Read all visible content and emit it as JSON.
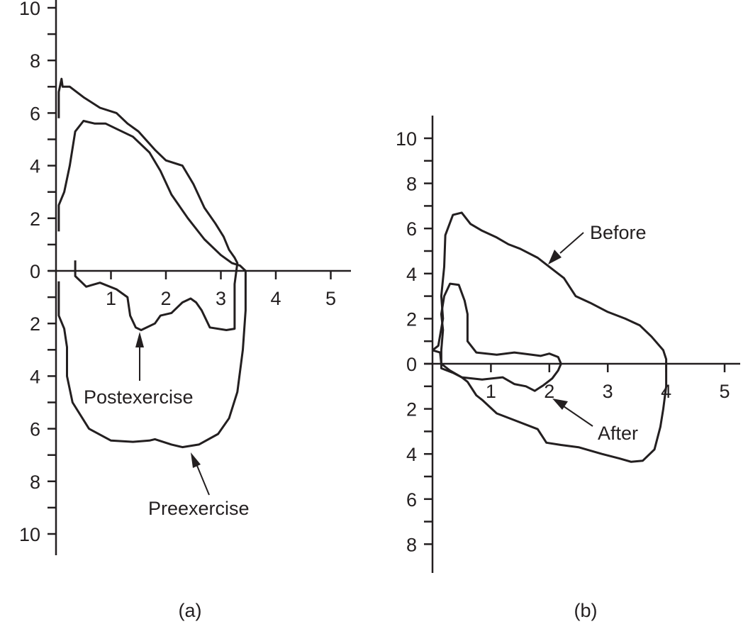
{
  "chart_data": [
    {
      "type": "line",
      "panel_label": "(a)",
      "title": "",
      "xlabel": "",
      "ylabel": "",
      "x_ticks": [
        "1",
        "2",
        "3",
        "4",
        "5"
      ],
      "y_ticks_up": [
        "0",
        "2",
        "4",
        "6",
        "8",
        "10"
      ],
      "y_ticks_down": [
        "2",
        "4",
        "6",
        "8",
        "10"
      ],
      "xlim": [
        0,
        5.3
      ],
      "ylim": [
        -10.8,
        10
      ],
      "grid": false,
      "series": [
        {
          "name": "Preexercise",
          "points": [
            [
              0.05,
              1.5
            ],
            [
              0.05,
              2.5
            ],
            [
              0.15,
              3.0
            ],
            [
              0.25,
              4.0
            ],
            [
              0.35,
              5.3
            ],
            [
              0.5,
              5.7
            ],
            [
              0.7,
              5.6
            ],
            [
              0.9,
              5.6
            ],
            [
              1.1,
              5.4
            ],
            [
              1.4,
              5.1
            ],
            [
              1.7,
              4.5
            ],
            [
              1.9,
              3.8
            ],
            [
              2.1,
              2.9
            ],
            [
              2.4,
              2.0
            ],
            [
              2.7,
              1.2
            ],
            [
              3.0,
              0.6
            ],
            [
              3.2,
              0.3
            ],
            [
              3.35,
              0.2
            ],
            [
              3.45,
              0.0
            ],
            [
              3.45,
              -1.5
            ],
            [
              3.4,
              -3.0
            ],
            [
              3.3,
              -4.6
            ],
            [
              3.15,
              -5.6
            ],
            [
              2.95,
              -6.2
            ],
            [
              2.6,
              -6.6
            ],
            [
              2.3,
              -6.7
            ],
            [
              2.1,
              -6.6
            ],
            [
              1.8,
              -6.4
            ],
            [
              1.7,
              -6.45
            ],
            [
              1.4,
              -6.5
            ],
            [
              1.0,
              -6.45
            ],
            [
              0.6,
              -6.0
            ],
            [
              0.3,
              -5.0
            ],
            [
              0.2,
              -4.0
            ],
            [
              0.2,
              -2.9
            ],
            [
              0.15,
              -2.2
            ],
            [
              0.05,
              -1.7
            ],
            [
              0.05,
              -0.4
            ]
          ]
        },
        {
          "name": "Postexercise",
          "points": [
            [
              0.05,
              5.8
            ],
            [
              0.05,
              6.8
            ],
            [
              0.1,
              7.3
            ],
            [
              0.12,
              7.0
            ],
            [
              0.25,
              7.0
            ],
            [
              0.5,
              6.6
            ],
            [
              0.8,
              6.2
            ],
            [
              1.1,
              6.0
            ],
            [
              1.3,
              5.6
            ],
            [
              1.5,
              5.3
            ],
            [
              1.8,
              4.6
            ],
            [
              2.0,
              4.2
            ],
            [
              2.3,
              4.0
            ],
            [
              2.5,
              3.3
            ],
            [
              2.7,
              2.4
            ],
            [
              2.9,
              1.8
            ],
            [
              3.05,
              1.3
            ],
            [
              3.15,
              0.8
            ],
            [
              3.25,
              0.5
            ],
            [
              3.3,
              0.3
            ],
            [
              3.25,
              -0.5
            ],
            [
              3.25,
              -2.2
            ],
            [
              3.1,
              -2.25
            ],
            [
              2.8,
              -2.15
            ],
            [
              2.65,
              -1.5
            ],
            [
              2.55,
              -1.2
            ],
            [
              2.45,
              -1.05
            ],
            [
              2.3,
              -1.2
            ],
            [
              2.1,
              -1.6
            ],
            [
              1.9,
              -1.7
            ],
            [
              1.8,
              -2.0
            ],
            [
              1.55,
              -2.25
            ],
            [
              1.45,
              -2.15
            ],
            [
              1.35,
              -1.7
            ],
            [
              1.3,
              -1.0
            ],
            [
              1.1,
              -0.7
            ],
            [
              0.8,
              -0.45
            ],
            [
              0.55,
              -0.6
            ],
            [
              0.45,
              -0.4
            ],
            [
              0.35,
              -0.2
            ],
            [
              0.35,
              0.4
            ]
          ]
        }
      ],
      "annotations": [
        {
          "text": "Postexercise",
          "target": [
            1.55,
            -2.3
          ]
        },
        {
          "text": "Preexercise",
          "target": [
            2.45,
            -6.7
          ]
        }
      ]
    },
    {
      "type": "line",
      "panel_label": "(b)",
      "title": "",
      "xlabel": "",
      "ylabel": "",
      "x_ticks": [
        "1",
        "2",
        "3",
        "4",
        "5"
      ],
      "y_ticks_up": [
        "0",
        "2",
        "4",
        "6",
        "8",
        "10"
      ],
      "y_ticks_down": [
        "2",
        "4",
        "6",
        "8"
      ],
      "xlim": [
        0,
        5.3
      ],
      "ylim": [
        -9.3,
        11
      ],
      "grid": false,
      "series": [
        {
          "name": "Before",
          "points": [
            [
              0.0,
              0.6
            ],
            [
              0.1,
              0.8
            ],
            [
              0.18,
              2.0
            ],
            [
              0.15,
              3.0
            ],
            [
              0.2,
              4.3
            ],
            [
              0.22,
              5.7
            ],
            [
              0.35,
              6.6
            ],
            [
              0.5,
              6.7
            ],
            [
              0.65,
              6.2
            ],
            [
              0.85,
              5.9
            ],
            [
              1.1,
              5.6
            ],
            [
              1.3,
              5.3
            ],
            [
              1.5,
              5.1
            ],
            [
              1.8,
              4.7
            ],
            [
              2.0,
              4.3
            ],
            [
              2.25,
              3.8
            ],
            [
              2.45,
              3.0
            ],
            [
              2.7,
              2.7
            ],
            [
              3.0,
              2.3
            ],
            [
              3.3,
              2.0
            ],
            [
              3.55,
              1.7
            ],
            [
              3.75,
              1.2
            ],
            [
              3.95,
              0.6
            ],
            [
              4.0,
              0.2
            ],
            [
              4.0,
              -1.0
            ],
            [
              3.95,
              -2.0
            ],
            [
              3.9,
              -2.8
            ],
            [
              3.8,
              -3.8
            ],
            [
              3.6,
              -4.3
            ],
            [
              3.4,
              -4.35
            ],
            [
              3.2,
              -4.2
            ],
            [
              2.9,
              -4.0
            ],
            [
              2.5,
              -3.7
            ],
            [
              2.2,
              -3.6
            ],
            [
              1.95,
              -3.5
            ],
            [
              1.8,
              -2.9
            ],
            [
              1.4,
              -2.5
            ],
            [
              1.1,
              -2.2
            ],
            [
              0.85,
              -1.6
            ],
            [
              0.75,
              -1.4
            ],
            [
              0.6,
              -0.8
            ],
            [
              0.5,
              -0.6
            ],
            [
              0.3,
              -0.3
            ],
            [
              0.15,
              -0.0
            ],
            [
              0.13,
              0.5
            ],
            [
              0.0,
              0.6
            ]
          ]
        },
        {
          "name": "After",
          "points": [
            [
              0.15,
              0.6
            ],
            [
              0.18,
              1.5
            ],
            [
              0.15,
              2.2
            ],
            [
              0.2,
              3.0
            ],
            [
              0.3,
              3.55
            ],
            [
              0.45,
              3.5
            ],
            [
              0.55,
              2.8
            ],
            [
              0.6,
              2.2
            ],
            [
              0.6,
              1.0
            ],
            [
              0.75,
              0.5
            ],
            [
              1.1,
              0.4
            ],
            [
              1.4,
              0.5
            ],
            [
              1.7,
              0.4
            ],
            [
              1.85,
              0.35
            ],
            [
              2.0,
              0.45
            ],
            [
              2.15,
              0.3
            ],
            [
              2.2,
              0.0
            ],
            [
              2.15,
              -0.3
            ],
            [
              2.05,
              -0.65
            ],
            [
              1.9,
              -0.95
            ],
            [
              1.75,
              -1.2
            ],
            [
              1.6,
              -1.0
            ],
            [
              1.4,
              -0.9
            ],
            [
              1.2,
              -0.6
            ],
            [
              0.85,
              -0.7
            ],
            [
              0.5,
              -0.6
            ],
            [
              0.35,
              -0.4
            ],
            [
              0.15,
              -0.2
            ],
            [
              0.15,
              0.6
            ]
          ]
        }
      ],
      "annotations": [
        {
          "text": "Before",
          "target": [
            2.0,
            4.3
          ]
        },
        {
          "text": "After",
          "target": [
            2.05,
            -1.7
          ]
        }
      ]
    }
  ]
}
